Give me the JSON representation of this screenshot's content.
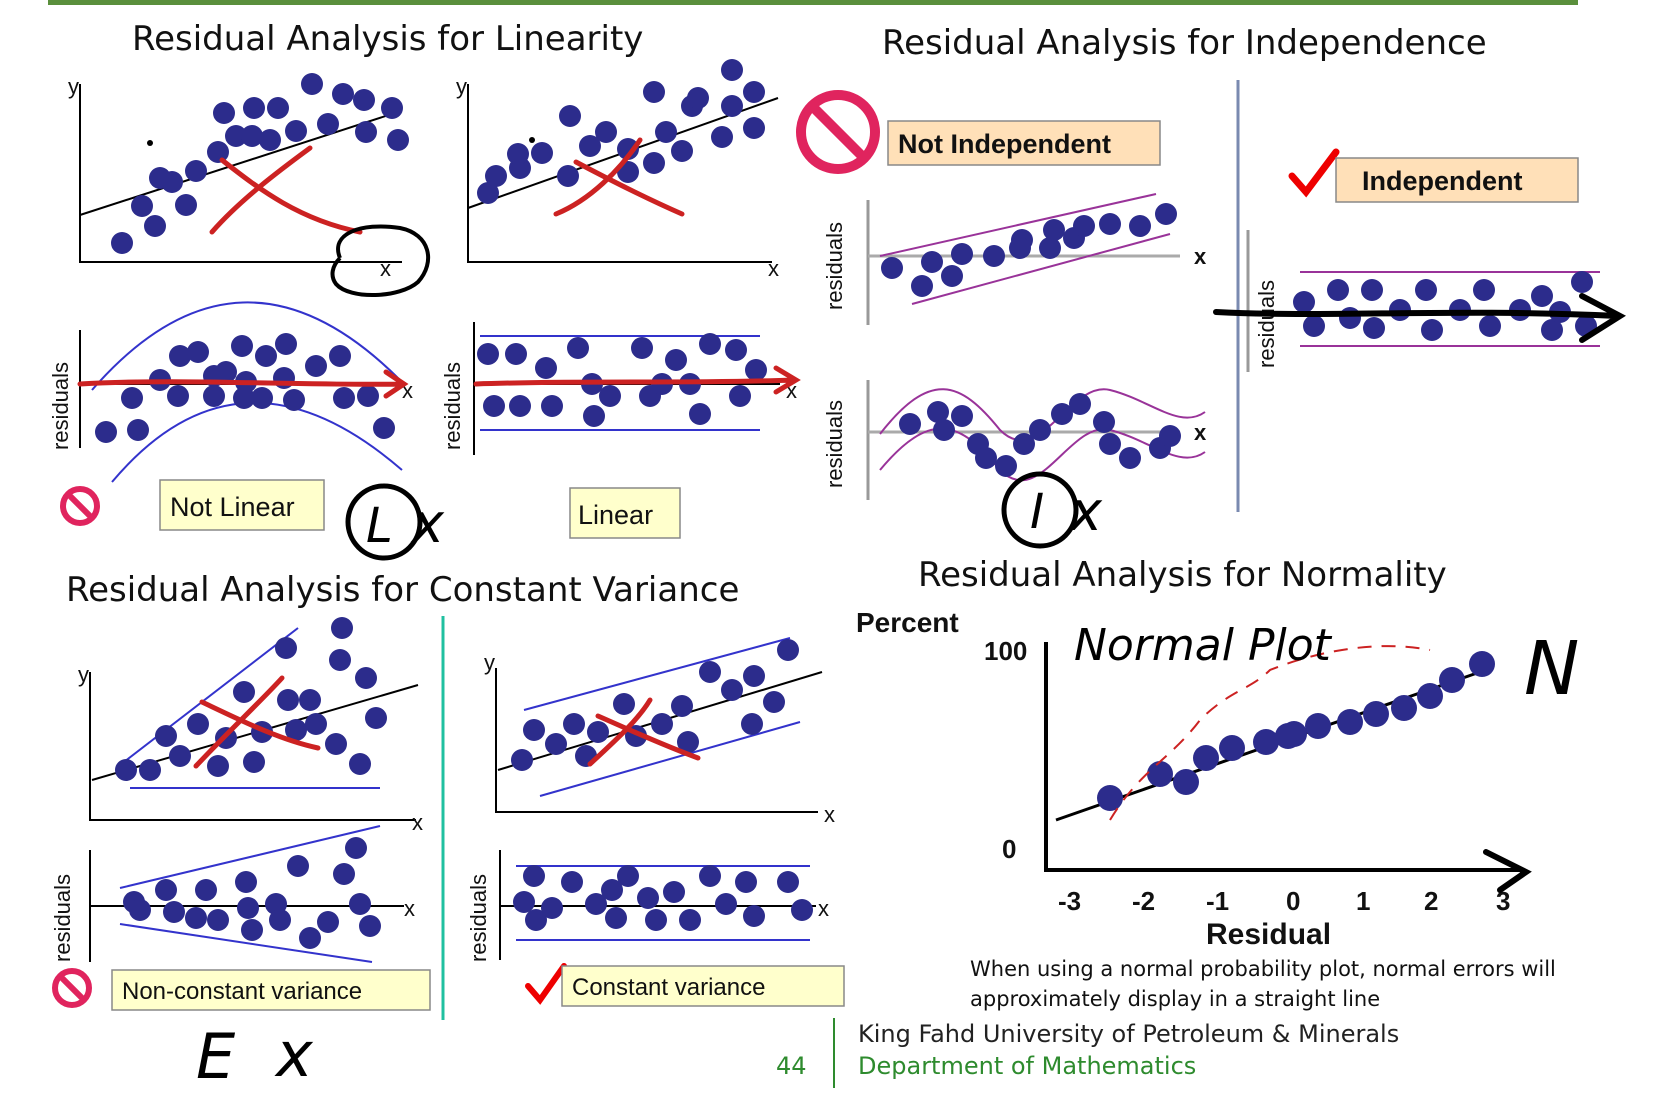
{
  "titles": {
    "linearity": "Residual Analysis for Linearity",
    "independence": "Residual Analysis for Independence",
    "constant_variance": "Residual Analysis for Constant Variance",
    "normality": "Residual Analysis for Normality"
  },
  "axes": {
    "y": "y",
    "x": "x",
    "residuals": "residuals"
  },
  "tags": {
    "not_linear": "Not Linear",
    "linear": "Linear",
    "not_independent": "Not Independent",
    "independent": "Independent",
    "non_constant_variance": "Non-constant variance",
    "constant_variance": "Constant variance"
  },
  "normality": {
    "ylabel": "Percent",
    "xlabel": "Residual",
    "y_ticks": [
      "100",
      "0"
    ],
    "x_ticks": [
      "-3",
      "-2",
      "-1",
      "0",
      "1",
      "2",
      "3"
    ],
    "caption_line1": "When using a normal probability plot, normal errors will",
    "caption_line2": "approximately display in a straight line"
  },
  "handwritten": {
    "normal_plot": "Normal Plot",
    "L": "L",
    "I": "I",
    "E": "E",
    "N": "N",
    "x": "x"
  },
  "footer": {
    "page_number": "44",
    "university": "King Fahd University of Petroleum & Minerals",
    "department": "Department of Mathematics"
  },
  "colors": {
    "dots": "#2c2c8c",
    "band_blue": "#3333cc",
    "band_purple": "#993399",
    "red_ink": "#cc2222",
    "tag_yellow": "#ffffcc",
    "tag_peach": "#ffe0b8",
    "footer_green": "#2e8b2e",
    "top_rule": "#5a8f3c"
  }
}
